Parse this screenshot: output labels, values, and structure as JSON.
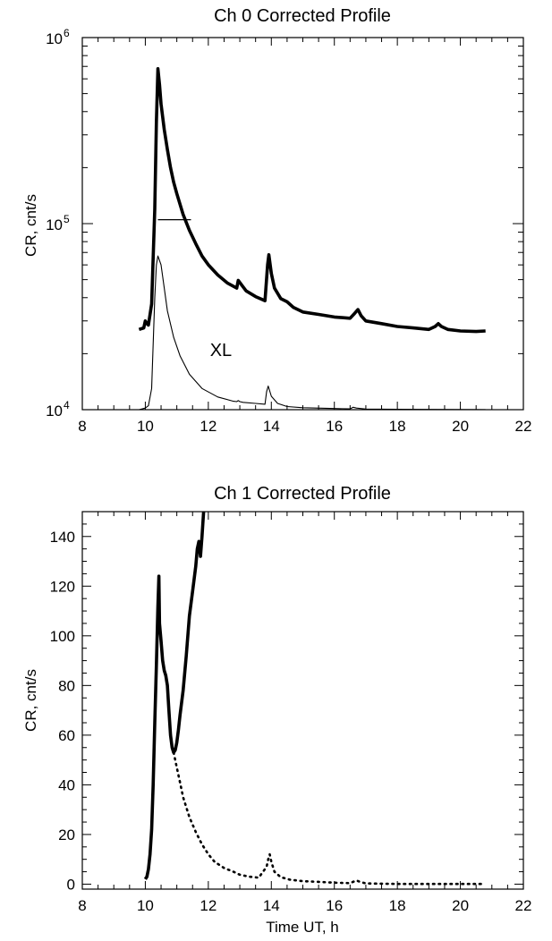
{
  "chart_data": [
    {
      "type": "line",
      "title": "Ch 0 Corrected Profile",
      "xlabel": "",
      "ylabel": "CR, cnt/s",
      "yscale": "log",
      "xlim": [
        8,
        22
      ],
      "ylim": [
        10000,
        1000000
      ],
      "xticks": [
        "8",
        "10",
        "12",
        "14",
        "16",
        "18",
        "20",
        "22"
      ],
      "yticks": [
        {
          "value": 10000,
          "base": "10",
          "exp": "4"
        },
        {
          "value": 100000,
          "base": "10",
          "exp": "5"
        },
        {
          "value": 1000000,
          "base": "10",
          "exp": "6"
        }
      ],
      "annotations": [
        {
          "text": "XL",
          "x": 12.4,
          "y": 21000
        }
      ],
      "hline": {
        "x": [
          10.4,
          11.45
        ],
        "y": 105000
      },
      "series": [
        {
          "style": "thick",
          "x": [
            9.8,
            9.95,
            10.0,
            10.05,
            10.1,
            10.2,
            10.3,
            10.35,
            10.4,
            10.45,
            10.5,
            10.6,
            10.7,
            10.8,
            10.9,
            11.0,
            11.2,
            11.4,
            11.6,
            11.8,
            12.0,
            12.3,
            12.6,
            12.9,
            12.95,
            13.05,
            13.2,
            13.5,
            13.8,
            13.88,
            13.92,
            14.0,
            14.1,
            14.3,
            14.5,
            14.7,
            15.0,
            15.5,
            16.0,
            16.5,
            16.65,
            16.75,
            16.85,
            17.0,
            17.5,
            18.0,
            18.5,
            19.0,
            19.2,
            19.3,
            19.4,
            19.6,
            20.0,
            20.5,
            20.8
          ],
          "y": [
            27000,
            27500,
            30000,
            29000,
            28500,
            37000,
            120000,
            350000,
            680000,
            560000,
            440000,
            320000,
            250000,
            200000,
            167000,
            145000,
            112000,
            92000,
            78000,
            67000,
            60000,
            53000,
            48000,
            45000,
            49500,
            47000,
            43500,
            40500,
            38500,
            60000,
            68000,
            54000,
            45000,
            39500,
            38000,
            35500,
            33500,
            32500,
            31500,
            31000,
            33000,
            34500,
            32000,
            30000,
            29000,
            28000,
            27500,
            27000,
            28000,
            29000,
            28000,
            27000,
            26500,
            26300,
            26500
          ]
        },
        {
          "style": "thin",
          "label": "XL",
          "x": [
            9.8,
            10.0,
            10.1,
            10.2,
            10.3,
            10.35,
            10.4,
            10.5,
            10.6,
            10.7,
            10.9,
            11.1,
            11.4,
            11.8,
            12.3,
            12.8,
            12.9,
            12.95,
            13.0,
            13.1,
            13.5,
            13.8,
            13.85,
            13.9,
            14.0,
            14.2,
            14.5,
            15.0,
            16.0,
            16.5,
            16.6,
            16.7,
            17.0,
            18.0,
            19.0,
            20.0,
            20.8
          ],
          "y": [
            10000,
            10200,
            10500,
            13000,
            40000,
            60000,
            67000,
            60000,
            45000,
            34000,
            24500,
            19500,
            15500,
            13000,
            11700,
            11100,
            11050,
            11200,
            11050,
            10950,
            10800,
            10700,
            12500,
            13400,
            11800,
            10800,
            10400,
            10250,
            10150,
            10100,
            10300,
            10200,
            10080,
            10050,
            10030,
            10020,
            10010
          ]
        }
      ]
    },
    {
      "type": "line",
      "title": "Ch 1 Corrected Profile",
      "xlabel": "Time UT, h",
      "ylabel": "CR, cnt/s",
      "yscale": "linear",
      "xlim": [
        8,
        22
      ],
      "ylim": [
        -2,
        150
      ],
      "xticks": [
        "8",
        "10",
        "12",
        "14",
        "16",
        "18",
        "20",
        "22"
      ],
      "yticks": [
        "0",
        "20",
        "40",
        "60",
        "80",
        "100",
        "120",
        "140"
      ],
      "series": [
        {
          "style": "thick",
          "x": [
            10.0,
            10.05,
            10.1,
            10.15,
            10.2,
            10.25,
            10.3,
            10.35,
            10.4,
            10.43,
            10.45,
            10.5,
            10.55,
            10.6,
            10.65,
            10.7,
            10.75,
            10.8,
            10.85,
            10.9,
            10.95,
            11.0,
            11.05,
            11.1,
            11.2,
            11.3,
            11.4,
            11.5,
            11.6,
            11.65,
            11.7,
            11.75,
            11.8,
            11.85
          ],
          "y": [
            2,
            3,
            6,
            12,
            22,
            40,
            65,
            88,
            112,
            124,
            105,
            98,
            90,
            86,
            84,
            80,
            70,
            60,
            55,
            53,
            54,
            57,
            62,
            68,
            78,
            92,
            108,
            118,
            128,
            135,
            138,
            132,
            140,
            150
          ]
        },
        {
          "style": "dotted",
          "x": [
            10.9,
            11.0,
            11.1,
            11.2,
            11.4,
            11.6,
            11.8,
            12.0,
            12.2,
            12.5,
            12.8,
            13.0,
            13.3,
            13.6,
            13.85,
            13.9,
            13.95,
            14.0,
            14.1,
            14.3,
            14.6,
            15.0,
            15.5,
            16.0,
            16.5,
            16.7,
            16.8,
            17.0,
            17.5,
            18.0,
            19.0,
            20.0,
            20.7
          ],
          "y": [
            53,
            47,
            41,
            35,
            27,
            21,
            16,
            12,
            9,
            6.5,
            5,
            3.8,
            3,
            2.6,
            7,
            10,
            12,
            9,
            5,
            2.8,
            1.8,
            1.2,
            0.9,
            0.6,
            0.4,
            1.5,
            1.0,
            0.3,
            0.2,
            0.1,
            0.1,
            0.1,
            0.1
          ]
        }
      ]
    }
  ]
}
